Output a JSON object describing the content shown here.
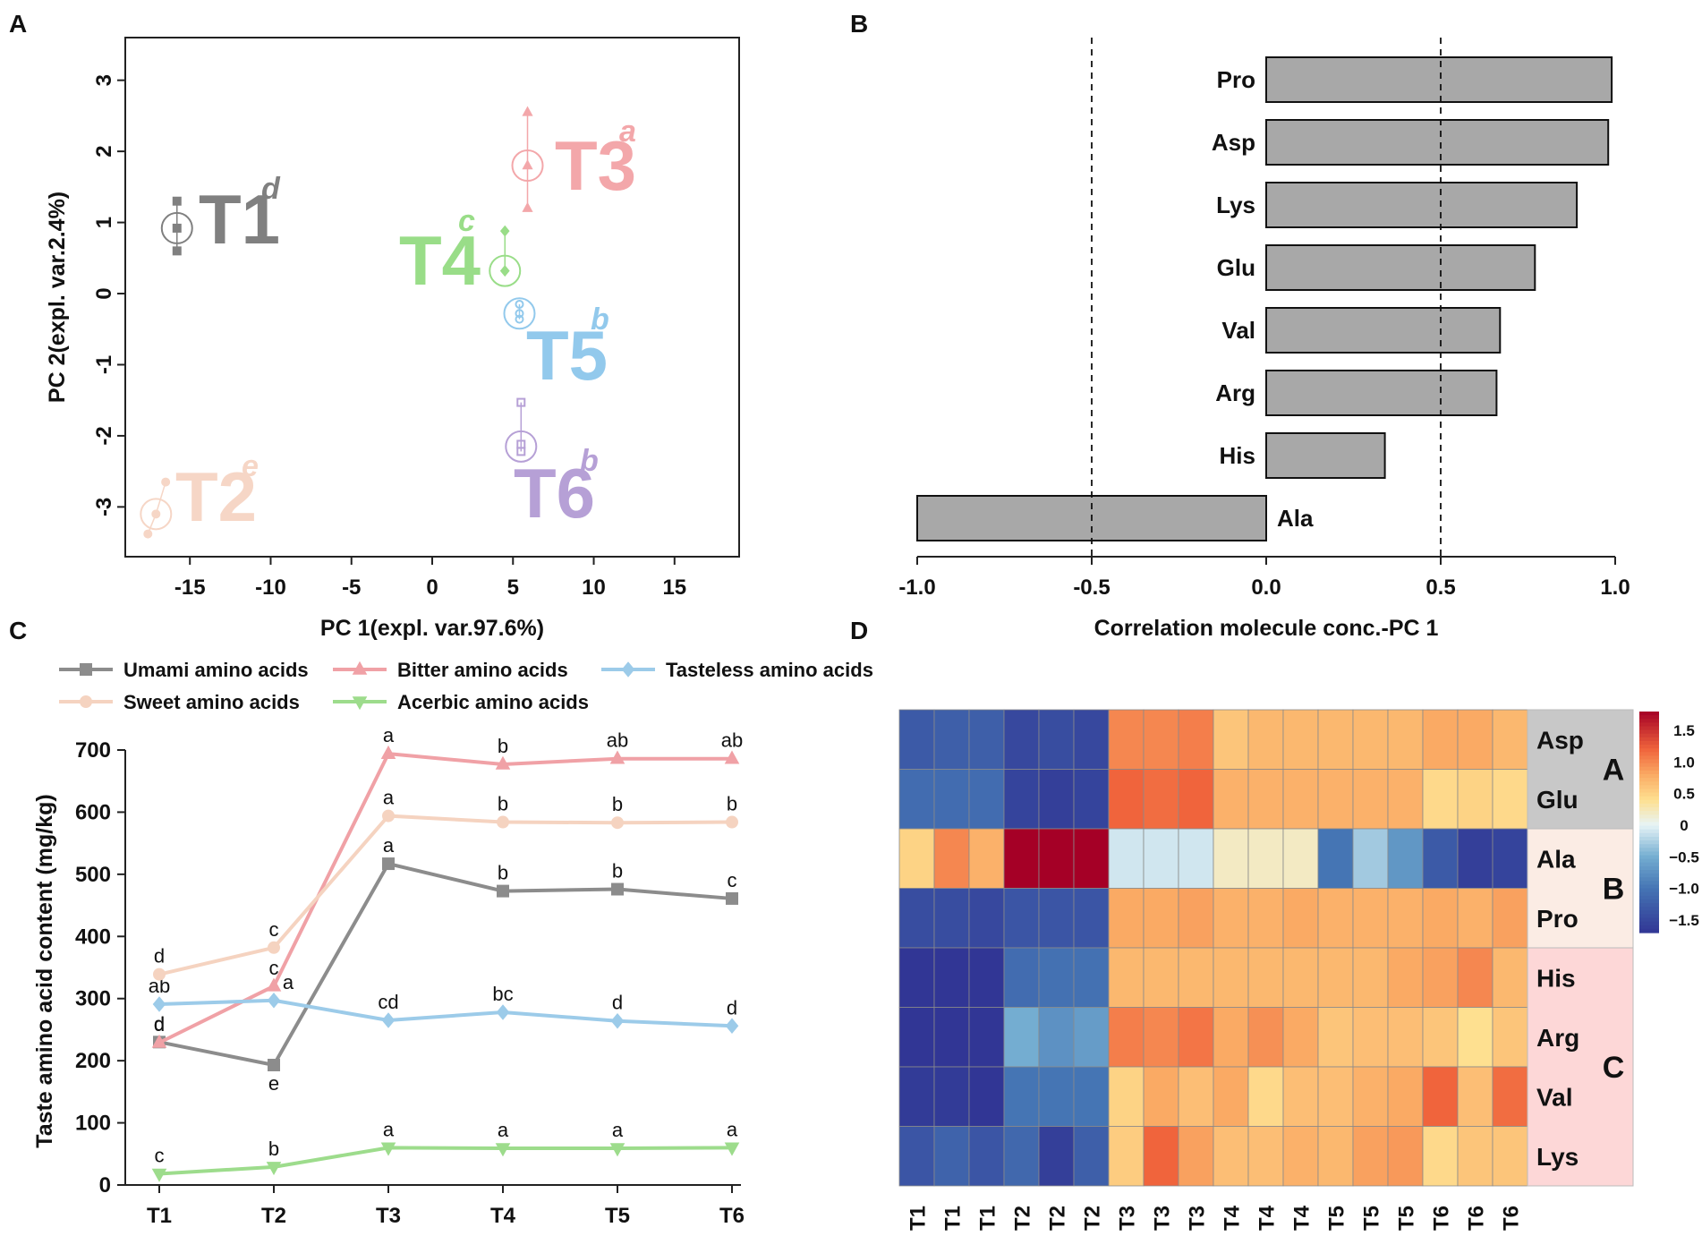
{
  "colors": {
    "umami": "#8c8c8c",
    "bitter": "#f0a1a6",
    "tasteless": "#9ccbe9",
    "sweet": "#f5d3c0",
    "acerbic": "#9ddc8c",
    "T1": "#808080",
    "T2": "#f6d6c6",
    "T3": "#f3a7aa",
    "T4": "#99dd88",
    "T5": "#92c9ec",
    "T6": "#b6a0d6",
    "bar_fill": "#a8a8a8"
  },
  "panels": {
    "A": {
      "label": "A",
      "xlabel": "PC 1(expl. var.97.6%)",
      "ylabel": "PC 2(expl. var.2.4%)"
    },
    "B": {
      "label": "B",
      "xlabel": "Correlation molecule conc.-PC 1"
    },
    "C": {
      "label": "C",
      "ylabel": "Taste amino acid content (mg/kg)"
    },
    "D": {
      "label": "D"
    }
  },
  "chart_data": [
    {
      "panel": "A",
      "type": "scatter",
      "xlabel": "PC 1(expl. var.97.6%)",
      "ylabel": "PC 2(expl. var.2.4%)",
      "xlim": [
        -19,
        19
      ],
      "ylim": [
        -3.7,
        3.6
      ],
      "xticks": [
        -15,
        -10,
        -5,
        0,
        5,
        10,
        15
      ],
      "yticks": [
        -3,
        -2,
        -1,
        0,
        1,
        2,
        3
      ],
      "groups": [
        {
          "name": "T1",
          "letter": "d",
          "centroid": [
            -15.8,
            0.92
          ],
          "points": [
            [
              -15.8,
              1.3
            ],
            [
              -15.8,
              0.92
            ],
            [
              -15.8,
              0.6
            ]
          ],
          "marker": "square",
          "color_key": "T1"
        },
        {
          "name": "T2",
          "letter": "e",
          "centroid": [
            -17.1,
            -3.1
          ],
          "points": [
            [
              -16.5,
              -2.65
            ],
            [
              -17.1,
              -3.1
            ],
            [
              -17.6,
              -3.38
            ]
          ],
          "marker": "circle",
          "color_key": "T2"
        },
        {
          "name": "T3",
          "letter": "a",
          "centroid": [
            5.9,
            1.8
          ],
          "points": [
            [
              5.9,
              2.55
            ],
            [
              5.9,
              1.8
            ],
            [
              5.9,
              1.2
            ]
          ],
          "marker": "triangle",
          "color_key": "T3"
        },
        {
          "name": "T4",
          "letter": "c",
          "centroid": [
            4.5,
            0.32
          ],
          "points": [
            [
              4.5,
              0.88
            ],
            [
              4.5,
              0.32
            ],
            [
              4.5,
              0.32
            ]
          ],
          "marker": "diamond",
          "color_key": "T4"
        },
        {
          "name": "T5",
          "letter": "b",
          "centroid": [
            5.4,
            -0.28
          ],
          "points": [
            [
              5.4,
              -0.15
            ],
            [
              5.4,
              -0.28
            ],
            [
              5.4,
              -0.36
            ]
          ],
          "marker": "circle",
          "color_key": "T5"
        },
        {
          "name": "T6",
          "letter": "b",
          "centroid": [
            5.5,
            -2.15
          ],
          "points": [
            [
              5.5,
              -1.53
            ],
            [
              5.5,
              -2.12
            ],
            [
              5.5,
              -2.22
            ]
          ],
          "marker": "square",
          "color_key": "T6"
        }
      ]
    },
    {
      "panel": "B",
      "type": "bar",
      "orientation": "horizontal",
      "categories": [
        "Pro",
        "Asp",
        "Lys",
        "Glu",
        "Val",
        "Arg",
        "His",
        "Ala"
      ],
      "values": [
        0.99,
        0.98,
        0.89,
        0.77,
        0.67,
        0.66,
        0.34,
        -1.0
      ],
      "xlabel": "Correlation molecule conc.-PC 1",
      "xlim": [
        -1.0,
        1.0
      ],
      "xticks": [
        "-1.0",
        "-0.5",
        "0.0",
        "0.5",
        "1.0"
      ],
      "reference_lines": [
        -0.5,
        0.5
      ]
    },
    {
      "panel": "C",
      "type": "line",
      "categories": [
        "T1",
        "T2",
        "T3",
        "T4",
        "T5",
        "T6"
      ],
      "ylabel": "Taste amino acid content (mg/kg)",
      "ylim": [
        0,
        700
      ],
      "yticks": [
        0,
        100,
        200,
        300,
        400,
        500,
        600,
        700
      ],
      "series": [
        {
          "name": "Umami amino acids",
          "marker": "square",
          "color_key": "umami",
          "values": [
            230,
            193,
            517,
            473,
            476,
            461
          ],
          "letters": [
            "d",
            "e",
            "a",
            "b",
            "b",
            "c"
          ]
        },
        {
          "name": "Bitter amino acids",
          "marker": "triangle",
          "color_key": "bitter",
          "values": [
            229,
            320,
            694,
            677,
            686,
            686
          ],
          "letters": [
            "d",
            "c",
            "a",
            "b",
            "ab",
            "ab"
          ]
        },
        {
          "name": "Tasteless amino acids",
          "marker": "diamond",
          "color_key": "tasteless",
          "values": [
            291,
            297,
            265,
            278,
            264,
            256
          ],
          "letters": [
            "ab",
            "a",
            "cd",
            "bc",
            "d",
            "d"
          ]
        },
        {
          "name": "Sweet amino acids",
          "marker": "circle",
          "color_key": "sweet",
          "values": [
            339,
            382,
            594,
            584,
            583,
            584
          ],
          "letters": [
            "d",
            "c",
            "a",
            "b",
            "b",
            "b"
          ]
        },
        {
          "name": "Acerbic amino acids",
          "marker": "triangle-down",
          "color_key": "acerbic",
          "values": [
            18,
            29,
            60,
            59,
            59,
            60
          ],
          "letters": [
            "c",
            "b",
            "a",
            "a",
            "a",
            "a"
          ]
        }
      ]
    },
    {
      "panel": "D",
      "type": "heatmap",
      "columns": [
        "T1",
        "T1",
        "T1",
        "T2",
        "T2",
        "T2",
        "T3",
        "T3",
        "T3",
        "T4",
        "T4",
        "T4",
        "T5",
        "T5",
        "T5",
        "T6",
        "T6",
        "T6"
      ],
      "rows": [
        "Asp",
        "Glu",
        "Ala",
        "Pro",
        "His",
        "Arg",
        "Val",
        "Lys"
      ],
      "row_groups": [
        {
          "name": "A",
          "rows": [
            "Asp",
            "Glu"
          ],
          "color": "#c8c8c8"
        },
        {
          "name": "B",
          "rows": [
            "Ala",
            "Pro"
          ],
          "color": "#fbece4"
        },
        {
          "name": "C",
          "rows": [
            "His",
            "Arg",
            "Val",
            "Lys"
          ],
          "color": "#fdd7d7"
        }
      ],
      "values": [
        [
          -1.3,
          -1.25,
          -1.25,
          -1.5,
          -1.45,
          -1.5,
          1.0,
          1.0,
          1.05,
          0.6,
          0.7,
          0.7,
          0.7,
          0.7,
          0.7,
          0.8,
          0.8,
          0.7
        ],
        [
          -1.1,
          -1.1,
          -1.1,
          -1.55,
          -1.6,
          -1.55,
          1.2,
          1.15,
          1.2,
          0.75,
          0.75,
          0.75,
          0.75,
          0.75,
          0.75,
          0.45,
          0.5,
          0.45
        ],
        [
          0.5,
          1.0,
          0.75,
          1.8,
          1.8,
          1.8,
          -0.1,
          -0.1,
          -0.1,
          0.2,
          0.2,
          0.2,
          -1.0,
          -0.3,
          -0.7,
          -1.3,
          -1.6,
          -1.55
        ],
        [
          -1.45,
          -1.45,
          -1.5,
          -1.35,
          -1.35,
          -1.35,
          0.8,
          0.8,
          0.85,
          0.75,
          0.75,
          0.8,
          0.75,
          0.75,
          0.75,
          0.8,
          0.75,
          0.85
        ],
        [
          -1.7,
          -1.7,
          -1.7,
          -1.1,
          -1.05,
          -1.05,
          0.7,
          0.7,
          0.7,
          0.7,
          0.7,
          0.7,
          0.7,
          0.7,
          0.8,
          0.85,
          1.0,
          0.7
        ],
        [
          -1.7,
          -1.7,
          -1.7,
          -0.5,
          -0.75,
          -0.65,
          1.05,
          1.0,
          1.1,
          0.8,
          0.95,
          0.8,
          0.6,
          0.65,
          0.65,
          0.6,
          0.4,
          0.6
        ],
        [
          -1.65,
          -1.65,
          -1.7,
          -1.0,
          -1.0,
          -1.0,
          0.5,
          0.8,
          0.65,
          0.8,
          0.45,
          0.65,
          0.65,
          0.75,
          0.8,
          1.2,
          0.65,
          1.15
        ],
        [
          -1.35,
          -1.2,
          -1.35,
          -1.15,
          -1.6,
          -1.25,
          0.55,
          1.2,
          0.85,
          0.65,
          0.65,
          0.75,
          0.7,
          0.85,
          0.9,
          0.45,
          0.6,
          0.6
        ]
      ],
      "color_range": [
        -1.7,
        1.8
      ],
      "colorbar_ticks": [
        "1.5",
        "1.0",
        "0.5",
        "0",
        "−0.5",
        "−1.0",
        "−1.5"
      ],
      "colorbar_values": [
        1.5,
        1.0,
        0.5,
        0,
        -0.5,
        -1.0,
        -1.5
      ]
    }
  ]
}
